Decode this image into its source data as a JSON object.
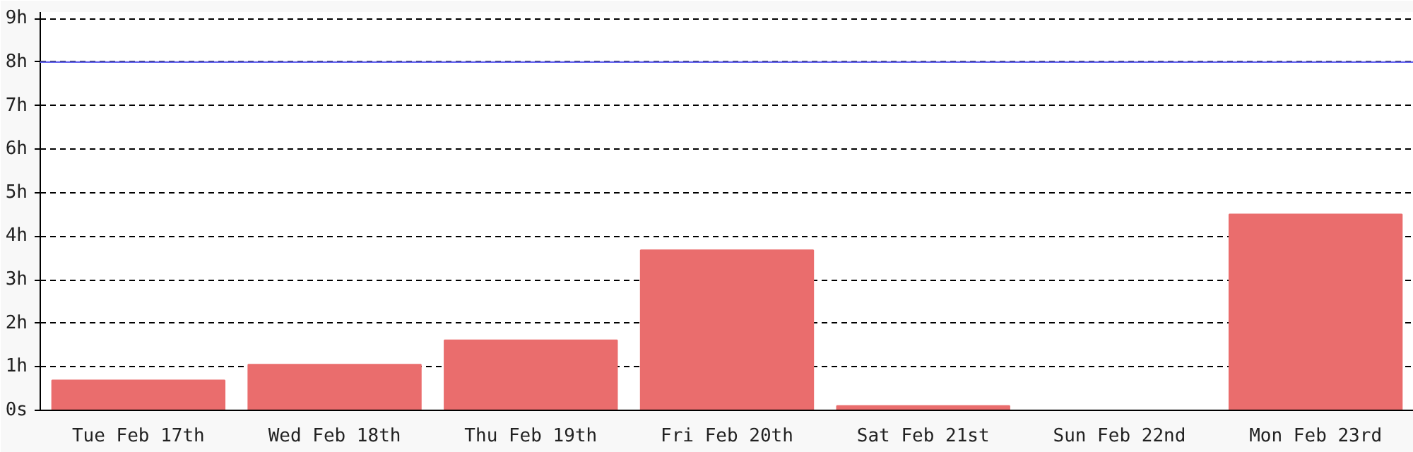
{
  "chart_data": {
    "type": "bar",
    "categories": [
      "Tue Feb 17th",
      "Wed Feb 18th",
      "Thu Feb 19th",
      "Fri Feb 20th",
      "Sat Feb 21st",
      "Sun Feb 22nd",
      "Mon Feb 23rd"
    ],
    "values": [
      0.69,
      1.05,
      1.61,
      3.68,
      0.1,
      0,
      4.5
    ],
    "color": "#ea6d6d",
    "ylim": [
      0,
      9.15
    ],
    "yticks": [
      {
        "value": 0,
        "label": "0s"
      },
      {
        "value": 1,
        "label": "1h"
      },
      {
        "value": 2,
        "label": "2h"
      },
      {
        "value": 3,
        "label": "3h"
      },
      {
        "value": 4,
        "label": "4h"
      },
      {
        "value": 5,
        "label": "5h"
      },
      {
        "value": 6,
        "label": "6h"
      },
      {
        "value": 7,
        "label": "7h"
      },
      {
        "value": 8,
        "label": "8h"
      },
      {
        "value": 9,
        "label": "9h"
      }
    ],
    "grid": "y",
    "ref_lines": [
      {
        "axis": "y",
        "value": 8,
        "color": "#6666ee"
      }
    ]
  }
}
